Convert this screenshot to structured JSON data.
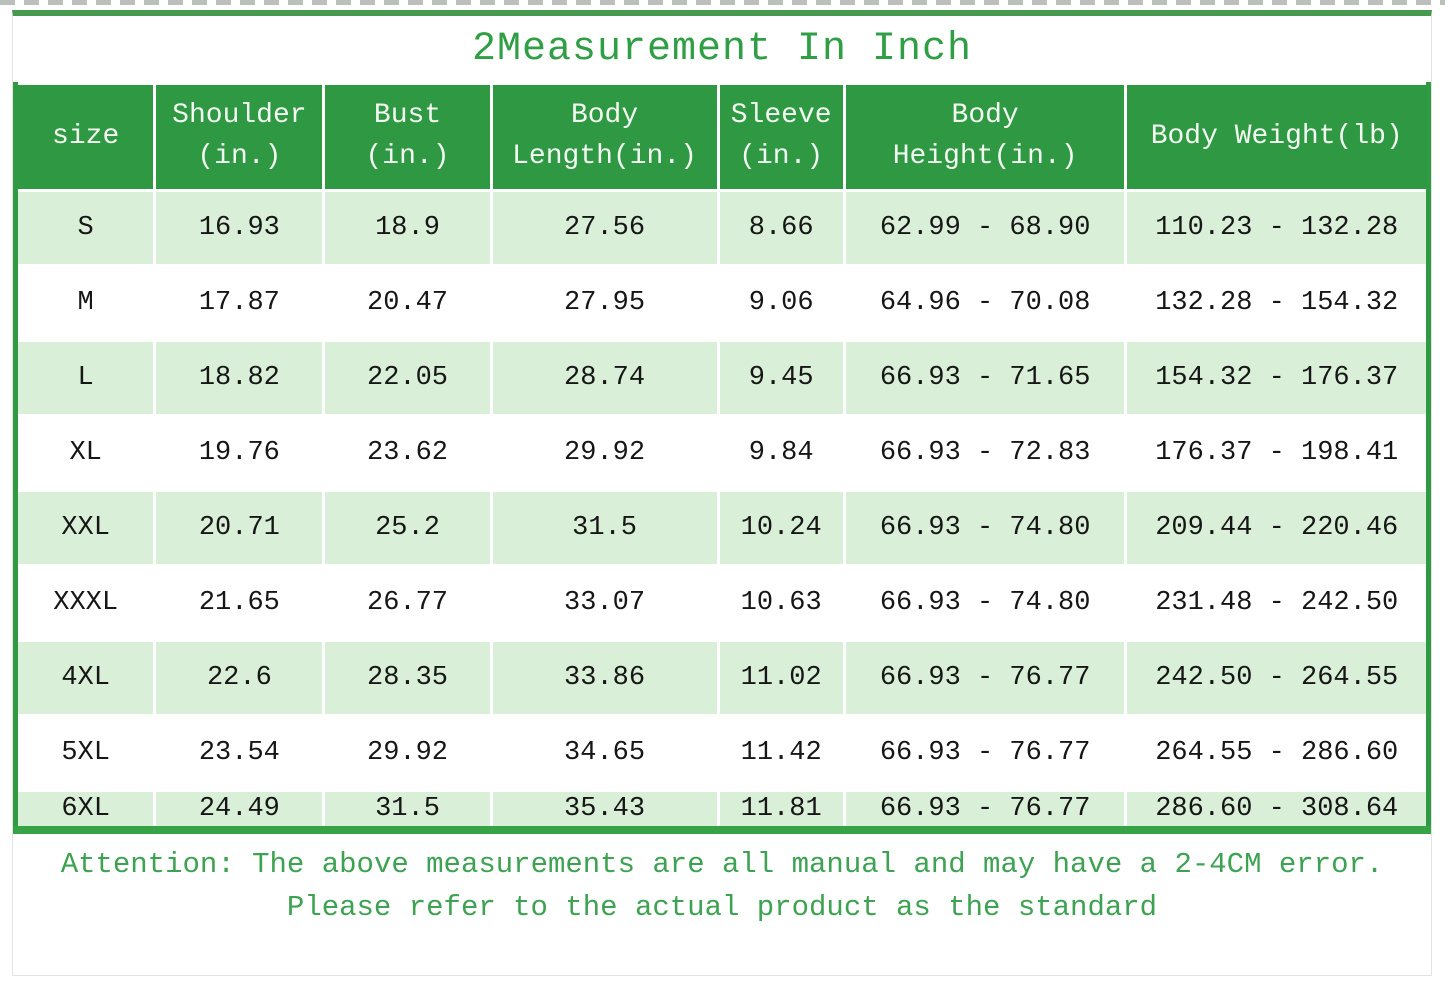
{
  "title": "2Measurement In Inch",
  "colors": {
    "header_green": "#2e9942",
    "row_light_green": "#d9efd8",
    "row_white": "#ffffff",
    "border_green": "#2f9a41",
    "title_green": "#2f9e44",
    "footer_green": "#3ea253",
    "cell_text": "#161616",
    "header_text": "#f2faf2"
  },
  "table": {
    "columns": [
      "size",
      "Shoulder\n(in.)",
      "Bust\n(in.)",
      "Body\nLength(in.)",
      "Sleeve\n(in.)",
      "Body\nHeight(in.)",
      "Body Weight(lb)"
    ],
    "rows": [
      [
        "S",
        "16.93",
        "18.9",
        "27.56",
        "8.66",
        "62.99 - 68.90",
        "110.23 - 132.28"
      ],
      [
        "M",
        "17.87",
        "20.47",
        "27.95",
        "9.06",
        "64.96 - 70.08",
        "132.28 - 154.32"
      ],
      [
        "L",
        "18.82",
        "22.05",
        "28.74",
        "9.45",
        "66.93 - 71.65",
        "154.32 - 176.37"
      ],
      [
        "XL",
        "19.76",
        "23.62",
        "29.92",
        "9.84",
        "66.93 - 72.83",
        "176.37 - 198.41"
      ],
      [
        "XXL",
        "20.71",
        "25.2",
        "31.5",
        "10.24",
        "66.93 - 74.80",
        "209.44 - 220.46"
      ],
      [
        "XXXL",
        "21.65",
        "26.77",
        "33.07",
        "10.63",
        "66.93 - 74.80",
        "231.48 - 242.50"
      ],
      [
        "4XL",
        "22.6",
        "28.35",
        "33.86",
        "11.02",
        "66.93 - 76.77",
        "242.50 - 264.55"
      ],
      [
        "5XL",
        "23.54",
        "29.92",
        "34.65",
        "11.42",
        "66.93 - 76.77",
        "264.55 - 286.60"
      ],
      [
        "6XL",
        "24.49",
        "31.5",
        "35.43",
        "11.81",
        "66.93 - 76.77",
        "286.60 - 308.64"
      ]
    ]
  },
  "footer": {
    "line1": "Attention: The above measurements are all manual and may have a 2-4CM error.",
    "line2": "Please refer to the actual product as the standard"
  }
}
